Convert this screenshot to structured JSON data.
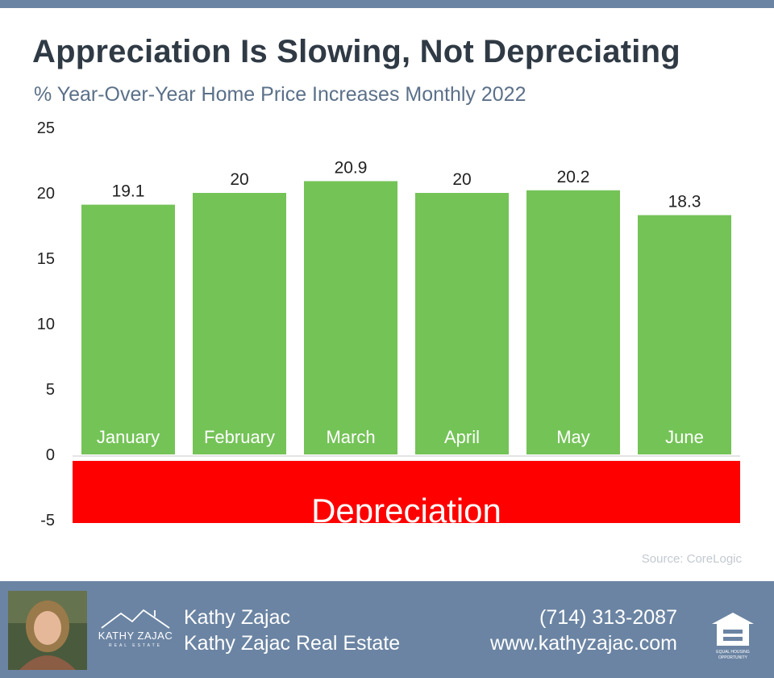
{
  "header": {
    "title": "Appreciation Is Slowing, Not Depreciating",
    "subtitle": "% Year-Over-Year Home Price Increases Monthly 2022"
  },
  "chart_data": {
    "type": "bar",
    "categories": [
      "January",
      "February",
      "March",
      "April",
      "May",
      "June"
    ],
    "values": [
      19.1,
      20,
      20.9,
      20,
      20.2,
      18.3
    ],
    "value_labels": [
      "19.1",
      "20",
      "20.9",
      "20",
      "20.2",
      "18.3"
    ],
    "ylim": [
      -5,
      25
    ],
    "yticks": [
      25,
      20,
      15,
      10,
      5,
      0,
      -5
    ],
    "negative_region_label": "Depreciation",
    "bar_color": "#74c357",
    "negative_region_color": "#ff0000",
    "grid": false
  },
  "source": "Source: CoreLogic",
  "footer": {
    "agent_name": "Kathy Zajac",
    "company": "Kathy Zajac Real Estate",
    "phone": "(714) 313-2087",
    "website": "www.kathyzajac.com",
    "logo_text": "KATHY ZAJAC",
    "logo_subtext": "REAL ESTATE",
    "eho_text": "EQUAL HOUSING OPPORTUNITY",
    "background_color": "#6b84a3"
  }
}
